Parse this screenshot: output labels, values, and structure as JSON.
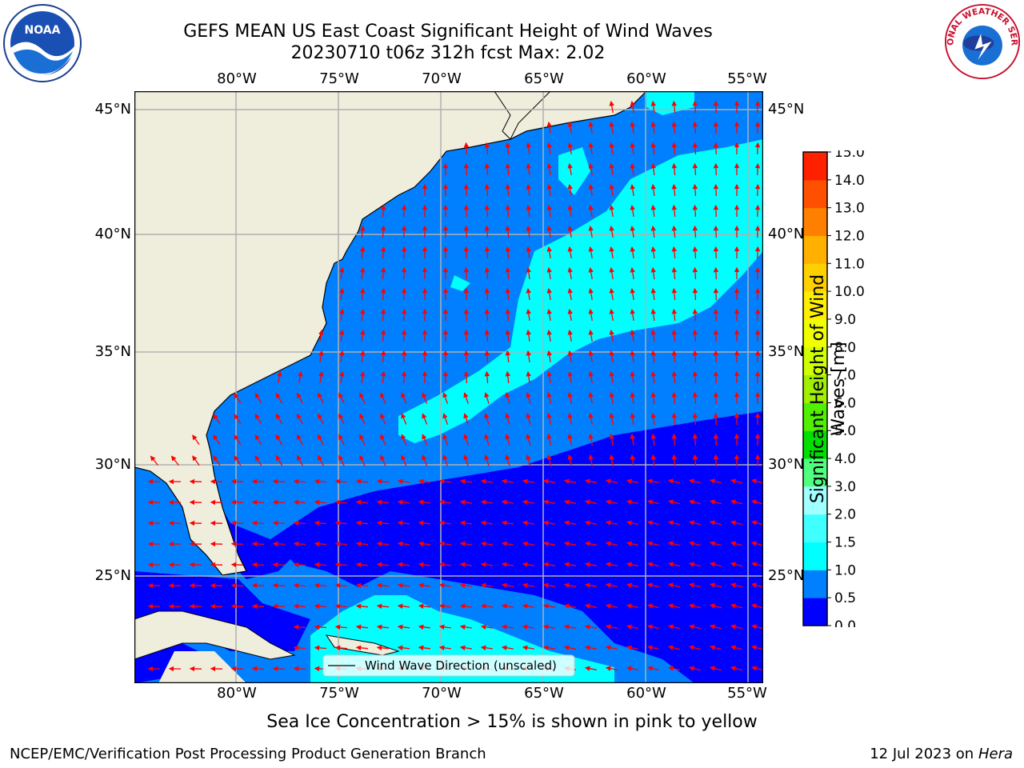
{
  "title_line1": "GEFS MEAN US East Coast Significant Height of Wind Waves",
  "title_line2": "20230710 t06z 312h fcst   Max: 2.02",
  "subtitle": "Sea Ice Concentration > 15% is shown in pink to yellow",
  "footer_left": "NCEP/EMC/Verification Post Processing Product Generation Branch",
  "footer_date": "12 Jul 2023 on",
  "footer_host": "Hera",
  "legend_label": "Wind Wave Direction (unscaled)",
  "colorbar_label": "Significant Height of Wind Waves [m]",
  "colorbar_ticks": [
    "0.0",
    "0.5",
    "1.0",
    "1.5",
    "2.0",
    "3.0",
    "4.0",
    "5.0",
    "6.0",
    "7.0",
    "8.0",
    "9.0",
    "10.0",
    "11.0",
    "12.0",
    "13.0",
    "14.0",
    "15.0"
  ],
  "colorbar_colors": [
    "#0000ff",
    "#0080ff",
    "#00ffff",
    "#40ffff",
    "#a0ffff",
    "#50ff80",
    "#00e000",
    "#50f000",
    "#a0f000",
    "#d0ff00",
    "#f0ff00",
    "#ffee00",
    "#ffd000",
    "#ffb000",
    "#ff8000",
    "#ff5000",
    "#ff2000"
  ],
  "lon_labels": [
    "80°W",
    "75°W",
    "70°W",
    "65°W",
    "60°W",
    "55°W"
  ],
  "lat_labels": [
    "45°N",
    "40°N",
    "35°N",
    "30°N",
    "25°N"
  ],
  "logos": {
    "left": "NOAA",
    "right": "NATIONAL WEATHER SERVICE"
  },
  "colors": {
    "land": "#efeddc",
    "arrow": "#ff0000",
    "grid": "#b0b0b0"
  },
  "chart_data": {
    "type": "heatmap",
    "region": {
      "lon": [
        -85,
        -54.2
      ],
      "lat": [
        20.5,
        46
      ]
    },
    "max_value": 2.02,
    "units": "m",
    "contour_levels": [
      0,
      0.5,
      1.0,
      1.5,
      2.0,
      3.0,
      4.0,
      5.0,
      6.0,
      7.0,
      8.0,
      9.0,
      10.0,
      11.0,
      12.0,
      13.0,
      14.0,
      15.0
    ],
    "features": [
      {
        "name": "cyan band",
        "range": "1.0-1.5",
        "area": "32-45°N, 55-71°W"
      },
      {
        "name": "cyan band south",
        "range": "1.0-1.5",
        "area": "21-24°N, 58-74°W"
      },
      {
        "name": "dark blue region",
        "range": "0.0-0.5",
        "area": "22-31°N, 54-75°W"
      },
      {
        "name": "Gulf of Mexico",
        "range": "0.0-0.5",
        "area": "west of Florida"
      }
    ]
  }
}
